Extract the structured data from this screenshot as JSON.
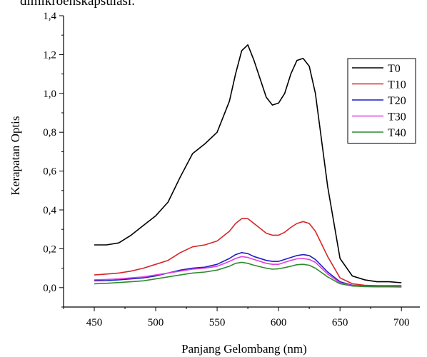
{
  "caption_fragment": "dimikroenskapsulasi.",
  "chart_data": {
    "type": "line",
    "xlabel": "Panjang Gelombang (nm)",
    "ylabel": "Kerapatan Optis",
    "xlim": [
      425,
      715
    ],
    "ylim": [
      -0.1,
      1.4
    ],
    "xticks": [
      450,
      500,
      550,
      600,
      650,
      700
    ],
    "xtick_labels": [
      "450",
      "500",
      "550",
      "600",
      "650",
      "700"
    ],
    "yticks": [
      0.0,
      0.2,
      0.4,
      0.6,
      0.8,
      1.0,
      1.2,
      1.4
    ],
    "ytick_labels": [
      "0,0",
      "0,2",
      "0,4",
      "0,6",
      "0,8",
      "1,0",
      "1,2",
      "1,4"
    ],
    "legend_position": "top-right",
    "x": [
      450,
      460,
      470,
      480,
      490,
      500,
      510,
      520,
      530,
      540,
      550,
      560,
      565,
      570,
      575,
      580,
      590,
      595,
      600,
      605,
      610,
      615,
      620,
      625,
      630,
      640,
      650,
      660,
      670,
      680,
      690,
      700
    ],
    "series": [
      {
        "name": "T0",
        "color": "#000000",
        "values": [
          0.22,
          0.22,
          0.23,
          0.27,
          0.32,
          0.37,
          0.44,
          0.57,
          0.69,
          0.74,
          0.8,
          0.96,
          1.1,
          1.22,
          1.25,
          1.17,
          0.98,
          0.94,
          0.95,
          1.0,
          1.1,
          1.17,
          1.18,
          1.14,
          1.0,
          0.52,
          0.15,
          0.06,
          0.04,
          0.03,
          0.03,
          0.025
        ]
      },
      {
        "name": "T10",
        "color": "#d62728",
        "values": [
          0.065,
          0.07,
          0.075,
          0.085,
          0.1,
          0.12,
          0.14,
          0.18,
          0.21,
          0.22,
          0.24,
          0.29,
          0.33,
          0.355,
          0.355,
          0.33,
          0.28,
          0.27,
          0.27,
          0.285,
          0.31,
          0.33,
          0.34,
          0.33,
          0.29,
          0.16,
          0.05,
          0.02,
          0.012,
          0.01,
          0.01,
          0.01
        ]
      },
      {
        "name": "T20",
        "color": "#1f1fbf",
        "values": [
          0.035,
          0.036,
          0.04,
          0.045,
          0.05,
          0.06,
          0.075,
          0.09,
          0.1,
          0.105,
          0.12,
          0.15,
          0.17,
          0.18,
          0.175,
          0.16,
          0.14,
          0.135,
          0.135,
          0.145,
          0.155,
          0.165,
          0.17,
          0.165,
          0.145,
          0.08,
          0.03,
          0.012,
          0.008,
          0.006,
          0.005,
          0.005
        ]
      },
      {
        "name": "T30",
        "color": "#e040e0",
        "values": [
          0.04,
          0.042,
          0.045,
          0.05,
          0.055,
          0.065,
          0.075,
          0.085,
          0.095,
          0.1,
          0.11,
          0.135,
          0.15,
          0.16,
          0.155,
          0.145,
          0.125,
          0.12,
          0.12,
          0.13,
          0.14,
          0.148,
          0.15,
          0.145,
          0.13,
          0.07,
          0.025,
          0.01,
          0.007,
          0.005,
          0.005,
          0.004
        ]
      },
      {
        "name": "T40",
        "color": "#2e8b2e",
        "values": [
          0.02,
          0.022,
          0.026,
          0.03,
          0.035,
          0.045,
          0.055,
          0.065,
          0.075,
          0.08,
          0.09,
          0.11,
          0.125,
          0.13,
          0.125,
          0.115,
          0.1,
          0.095,
          0.097,
          0.103,
          0.11,
          0.118,
          0.12,
          0.115,
          0.1,
          0.055,
          0.02,
          0.008,
          0.005,
          0.004,
          0.004,
          0.003
        ]
      }
    ]
  }
}
